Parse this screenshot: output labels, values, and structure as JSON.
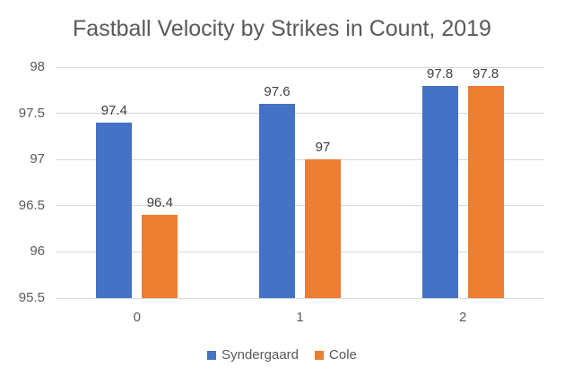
{
  "chart_data": {
    "type": "bar",
    "title": "Fastball Velocity by Strikes in Count, 2019",
    "xlabel": "",
    "ylabel": "",
    "categories": [
      "0",
      "1",
      "2"
    ],
    "series": [
      {
        "name": "Syndergaard",
        "color": "#4472C4",
        "values": [
          97.4,
          97.6,
          97.8
        ],
        "labels": [
          "97.4",
          "97.6",
          "97.8"
        ]
      },
      {
        "name": "Cole",
        "color": "#ED7D31",
        "values": [
          96.4,
          97,
          97.8
        ],
        "labels": [
          "96.4",
          "97",
          "97.8"
        ]
      }
    ],
    "ylim": [
      95.5,
      98
    ],
    "yticks": [
      95.5,
      96,
      96.5,
      97,
      97.5,
      98
    ],
    "ytick_labels": [
      "95.5",
      "96",
      "96.5",
      "97",
      "97.5",
      "98"
    ],
    "grid": "horizontal gridlines on",
    "legend_position": "bottom",
    "colors": {
      "syndergaard_blue": "#4472C4",
      "cole_orange": "#ED7D31",
      "gridline_gray": "#D9D9D9",
      "axis_text_gray": "#595959",
      "data_label_gray": "#404040",
      "title_gray": "#595959",
      "background": "#FFFFFF"
    }
  }
}
